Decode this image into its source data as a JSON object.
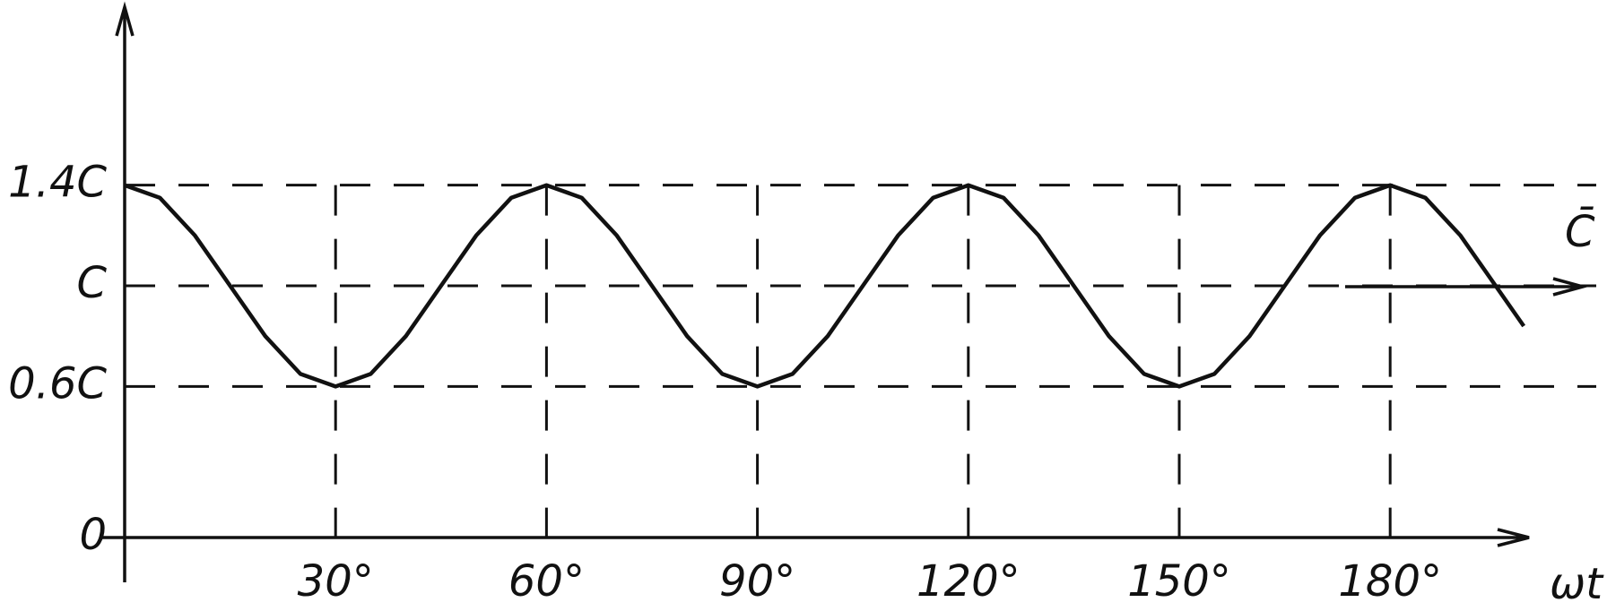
{
  "chart_data": {
    "type": "line",
    "x_label": "ωt",
    "y_label": "C̄",
    "x": [
      0,
      5,
      10,
      15,
      20,
      25,
      30,
      35,
      40,
      45,
      50,
      55,
      60,
      65,
      70,
      75,
      80,
      85,
      90,
      95,
      100,
      105,
      110,
      115,
      120,
      125,
      130,
      135,
      140,
      145,
      150,
      155,
      160,
      165,
      170,
      175,
      180,
      185,
      190,
      195,
      199
    ],
    "values": [
      1.4,
      1.35,
      1.2,
      1,
      0.8,
      0.65,
      0.6,
      0.65,
      0.8,
      1,
      1.2,
      1.35,
      1.4,
      1.35,
      1.2,
      1,
      0.8,
      0.65,
      0.6,
      0.65,
      0.8,
      1,
      1.2,
      1.35,
      1.4,
      1.35,
      1.2,
      1,
      0.8,
      0.65,
      0.6,
      0.65,
      0.8,
      1,
      1.2,
      1.35,
      1.4,
      1.35,
      1.2,
      1,
      0.84
    ],
    "color": "#111111",
    "xlim": [
      0,
      200
    ],
    "ylim": [
      0,
      2.1
    ],
    "xticks": [
      {
        "value": 30,
        "label": "30°"
      },
      {
        "value": 60,
        "label": "60°"
      },
      {
        "value": 90,
        "label": "90°"
      },
      {
        "value": 120,
        "label": "120°"
      },
      {
        "value": 150,
        "label": "150°"
      },
      {
        "value": 180,
        "label": "180°"
      }
    ],
    "yticks": [
      0,
      {
        "value": 0.6,
        "label": "0.6C"
      },
      {
        "value": 1,
        "label": "C"
      },
      {
        "value": 1.4,
        "label": "1.4C"
      }
    ],
    "grid": true
  }
}
